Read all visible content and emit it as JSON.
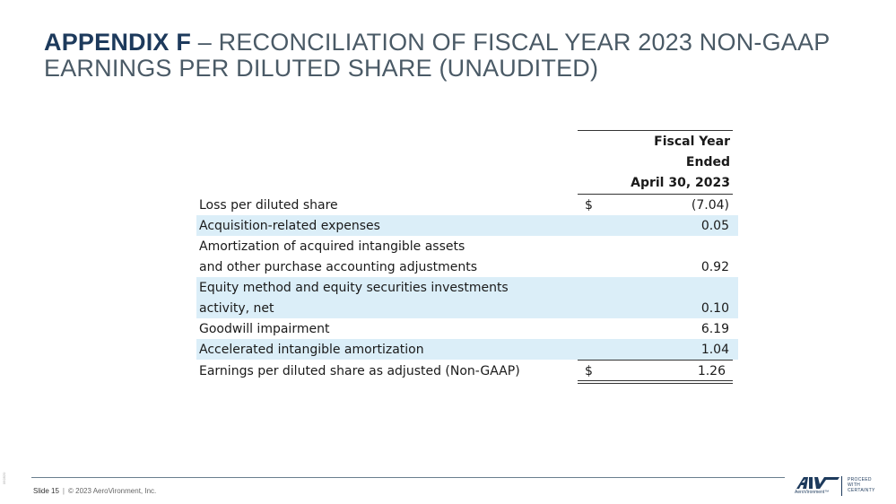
{
  "title": {
    "bold": "APPENDIX F",
    "rest": " – RECONCILIATION OF FISCAL YEAR 2023 NON-GAAP EARNINGS PER DILUTED SHARE (UNAUDITED)"
  },
  "table": {
    "header": [
      "Fiscal Year",
      "Ended",
      "April 30, 2023"
    ],
    "rows": [
      {
        "label": "Loss per diluted share",
        "currency": "$",
        "value": "(7.04)"
      },
      {
        "label": "Acquisition-related expenses",
        "value": "0.05"
      },
      {
        "label": "Amortization  of acquired intangible assets",
        "value": ""
      },
      {
        "label": "and other purchase accounting adjustments",
        "value": "0.92"
      },
      {
        "label": "Equity method and equity securities investments",
        "value": ""
      },
      {
        "label": "activity, net",
        "value": "0.10"
      },
      {
        "label": "Goodwill impairment",
        "value": "6.19"
      },
      {
        "label": "Accelerated intangible amortization",
        "value": "1.04"
      },
      {
        "label": "Earnings per diluted share as adjusted (Non-GAAP)",
        "currency": "$",
        "value": "1.26"
      }
    ]
  },
  "footer": {
    "slide": "Slide 15",
    "separator": "|",
    "copyright": "© 2023 AeroVironment, Inc.",
    "code": "092820"
  },
  "logo": {
    "mark": "AV",
    "name": "AeroVironment™",
    "tagline": [
      "PROCEED",
      "WITH",
      "CERTAINTY"
    ],
    "color": "#1d3a5c"
  }
}
